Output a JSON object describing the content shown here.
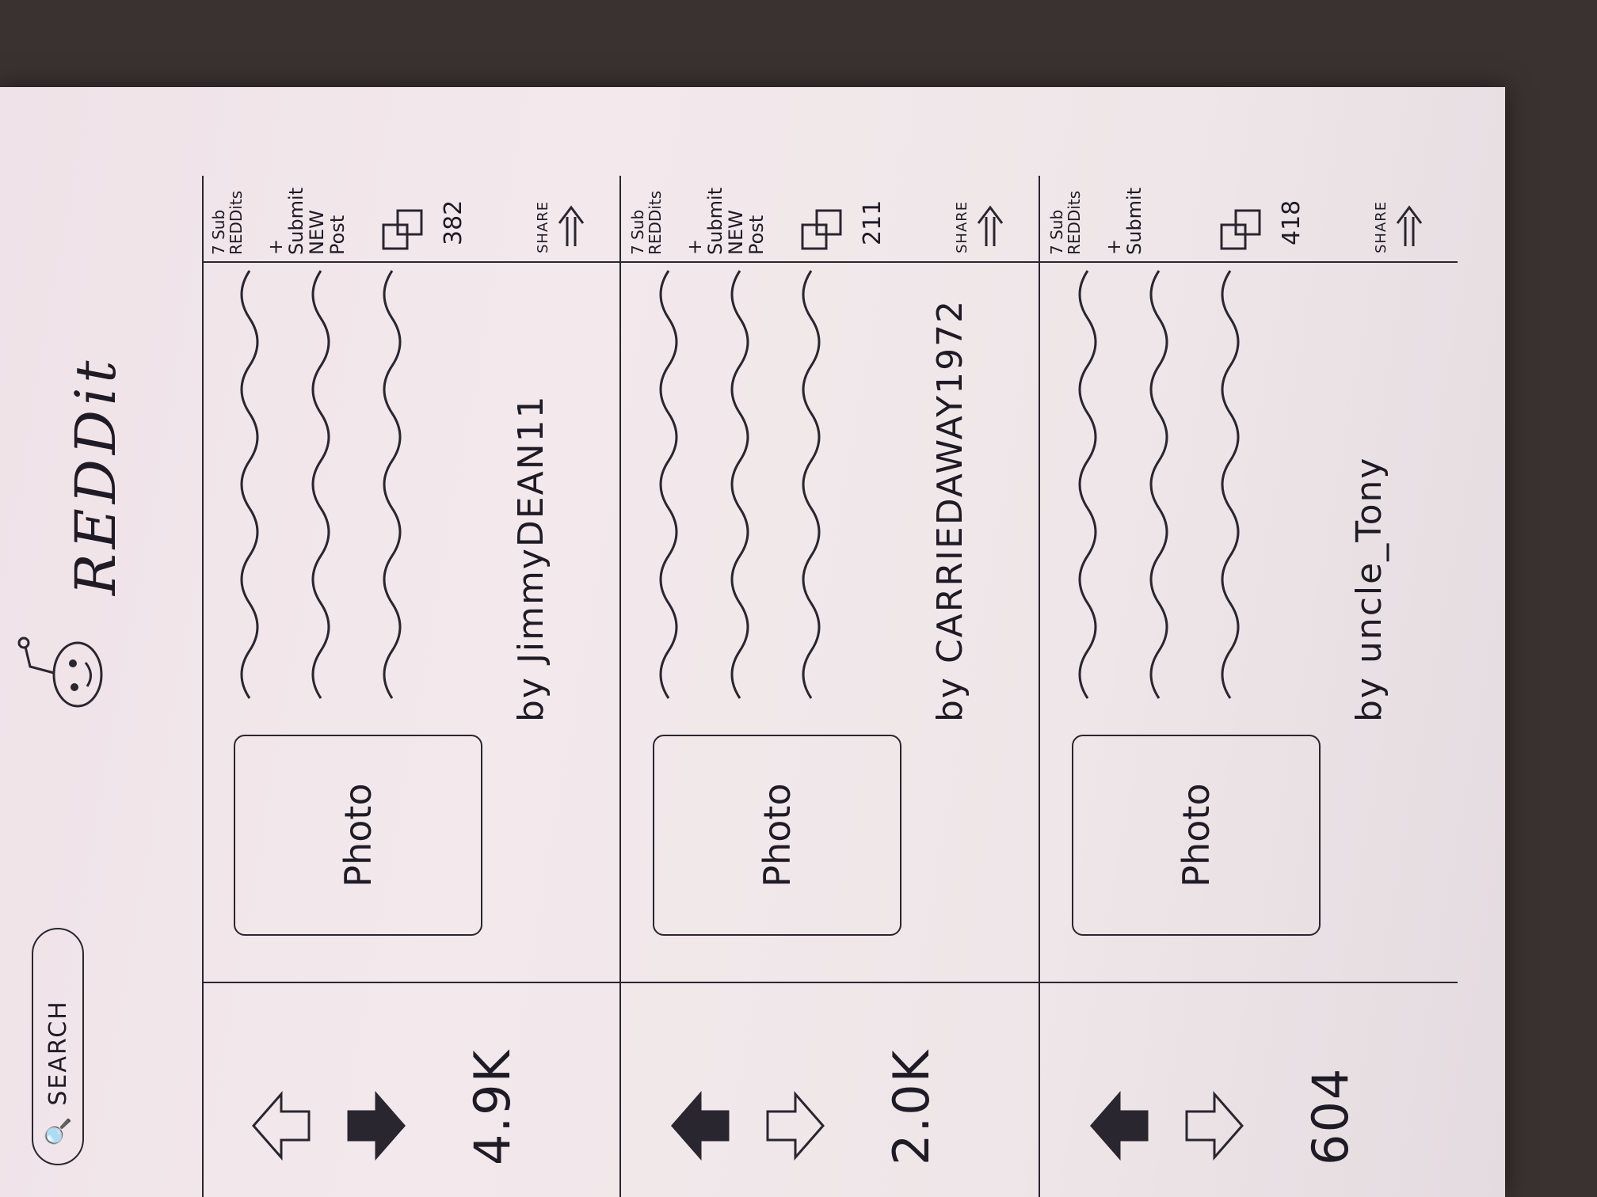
{
  "header": {
    "search_icon": "🔍",
    "search_label": "SEARCH",
    "logo_icon": "alien-face-icon",
    "brand": "REDDit"
  },
  "posts": [
    {
      "score": "4.9K",
      "upvote_filled": false,
      "downvote_filled": true,
      "photo_label": "Photo",
      "author": "by JimmyDEAN11",
      "subreddits": "7 Sub REDDits",
      "submit": "+ Submit NEW Post",
      "comments": "382",
      "share": "SHARE"
    },
    {
      "score": "2.0K",
      "upvote_filled": true,
      "downvote_filled": false,
      "photo_label": "Photo",
      "author": "by CARRIEDAWAY1972",
      "subreddits": "7 Sub REDDits",
      "submit": "+ Submit NEW Post",
      "comments": "211",
      "share": "SHARE"
    },
    {
      "score": "604",
      "upvote_filled": true,
      "downvote_filled": false,
      "photo_label": "Photo",
      "author": "by uncle_Tony",
      "subreddits": "7 Sub REDDits",
      "submit": "+ Submit",
      "comments": "418",
      "share": "SHARE"
    }
  ]
}
